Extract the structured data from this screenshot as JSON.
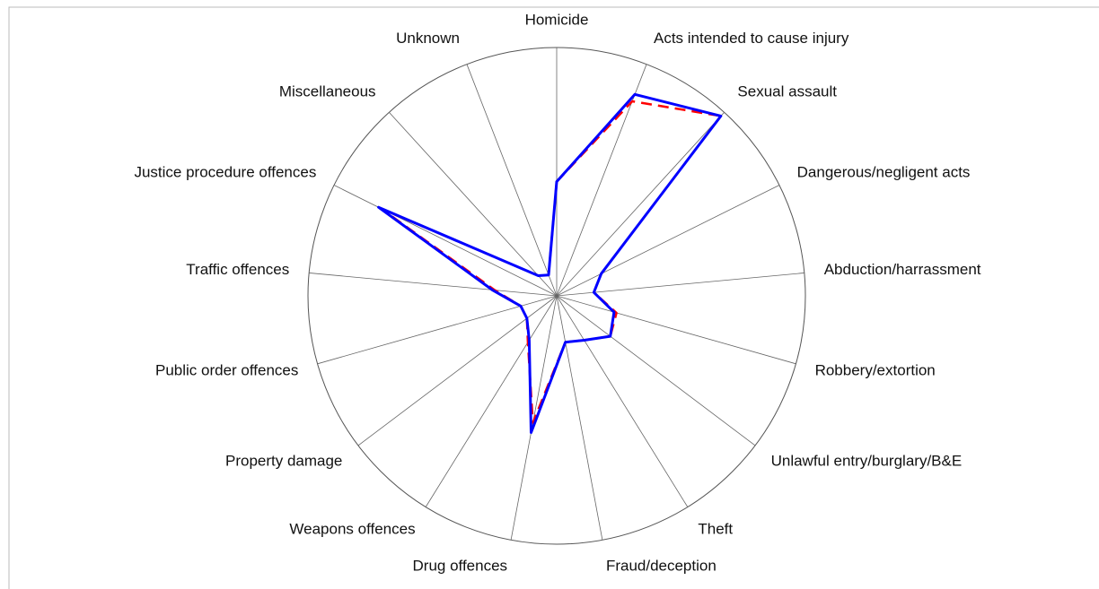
{
  "chart_data": {
    "type": "radar",
    "categories": [
      "Homicide",
      "Acts intended to cause injury",
      "Sexual assault",
      "Dangerous/negligent acts",
      "Abduction/harrassment",
      "Robbery/extortion",
      "Unlawful entry/burglary/B&E",
      "Theft",
      "Fraud/deception",
      "Drug offences",
      "Weapons offences",
      "Property damage",
      "Public order offences",
      "Traffic offences",
      "Justice procedure offences",
      "Miscellaneous",
      "Unknown"
    ],
    "rlim": [
      0,
      1
    ],
    "series": [
      {
        "color": "#ff0000",
        "style": "dashed",
        "values": [
          0.46,
          0.84,
          0.98,
          0.2,
          0.15,
          0.25,
          0.27,
          0.21,
          0.19,
          0.52,
          0.22,
          0.15,
          0.15,
          0.25,
          0.79,
          0.11,
          0.09
        ]
      },
      {
        "color": "#0000ff",
        "style": "solid",
        "values": [
          0.46,
          0.87,
          0.98,
          0.2,
          0.15,
          0.24,
          0.27,
          0.21,
          0.19,
          0.56,
          0.21,
          0.15,
          0.15,
          0.26,
          0.8,
          0.11,
          0.09
        ]
      }
    ]
  }
}
